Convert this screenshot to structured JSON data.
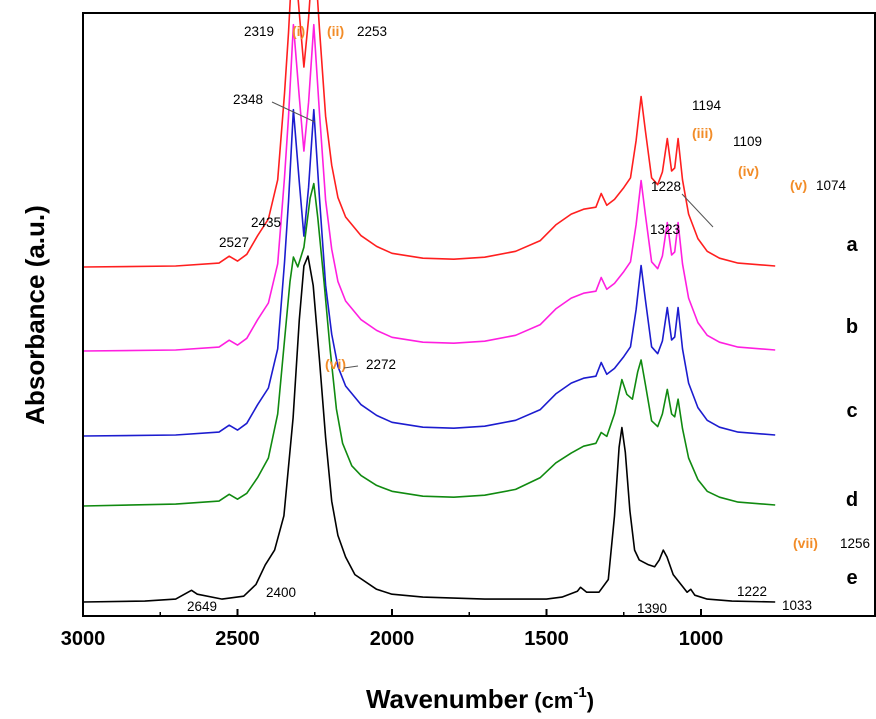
{
  "chart_data": {
    "type": "line",
    "xlabel": "Wavenumber (cm⁻¹)",
    "xlabel_main": "Wavenumber",
    "xlabel_unit": "(cm",
    "xlabel_exp": "-1",
    "xlabel_close": ")",
    "ylabel": "Absorbance (a.u.)",
    "x_axis_reversed": true,
    "xlim": [
      3000,
      760
    ],
    "xticks": [
      3000,
      2500,
      2000,
      1500,
      1000
    ],
    "grid": false,
    "series": [
      {
        "name": "a",
        "color": "#ff1f1f",
        "baseline": 0,
        "points": [
          [
            3000,
            0.01
          ],
          [
            2700,
            0.02
          ],
          [
            2560,
            0.05
          ],
          [
            2527,
            0.12
          ],
          [
            2500,
            0.07
          ],
          [
            2470,
            0.14
          ],
          [
            2435,
            0.33
          ],
          [
            2400,
            0.5
          ],
          [
            2370,
            0.9
          ],
          [
            2348,
            1.78
          ],
          [
            2335,
            2.4
          ],
          [
            2319,
            3.34
          ],
          [
            2300,
            2.6
          ],
          [
            2285,
            2.05
          ],
          [
            2270,
            2.55
          ],
          [
            2253,
            3.34
          ],
          [
            2235,
            2.45
          ],
          [
            2215,
            1.55
          ],
          [
            2195,
            1.05
          ],
          [
            2175,
            0.72
          ],
          [
            2150,
            0.52
          ],
          [
            2100,
            0.33
          ],
          [
            2050,
            0.22
          ],
          [
            2000,
            0.15
          ],
          [
            1900,
            0.1
          ],
          [
            1800,
            0.09
          ],
          [
            1700,
            0.11
          ],
          [
            1600,
            0.17
          ],
          [
            1520,
            0.28
          ],
          [
            1470,
            0.44
          ],
          [
            1420,
            0.55
          ],
          [
            1380,
            0.6
          ],
          [
            1340,
            0.62
          ],
          [
            1323,
            0.76
          ],
          [
            1305,
            0.64
          ],
          [
            1280,
            0.7
          ],
          [
            1250,
            0.82
          ],
          [
            1228,
            0.92
          ],
          [
            1210,
            1.3
          ],
          [
            1194,
            1.75
          ],
          [
            1180,
            1.4
          ],
          [
            1160,
            0.92
          ],
          [
            1140,
            0.85
          ],
          [
            1125,
            0.98
          ],
          [
            1109,
            1.32
          ],
          [
            1095,
            0.99
          ],
          [
            1085,
            1.02
          ],
          [
            1074,
            1.32
          ],
          [
            1060,
            0.9
          ],
          [
            1040,
            0.55
          ],
          [
            1010,
            0.3
          ],
          [
            980,
            0.17
          ],
          [
            940,
            0.1
          ],
          [
            880,
            0.05
          ],
          [
            760,
            0.02
          ]
        ]
      },
      {
        "name": "b",
        "color": "#ff1fe0",
        "baseline": 0,
        "points": [
          [
            3000,
            0.01
          ],
          [
            2700,
            0.02
          ],
          [
            2560,
            0.05
          ],
          [
            2527,
            0.12
          ],
          [
            2500,
            0.07
          ],
          [
            2470,
            0.14
          ],
          [
            2435,
            0.33
          ],
          [
            2400,
            0.5
          ],
          [
            2370,
            0.9
          ],
          [
            2348,
            1.78
          ],
          [
            2335,
            2.4
          ],
          [
            2319,
            3.34
          ],
          [
            2300,
            2.6
          ],
          [
            2285,
            2.05
          ],
          [
            2270,
            2.55
          ],
          [
            2253,
            3.34
          ],
          [
            2235,
            2.45
          ],
          [
            2215,
            1.55
          ],
          [
            2195,
            1.05
          ],
          [
            2175,
            0.72
          ],
          [
            2150,
            0.52
          ],
          [
            2100,
            0.33
          ],
          [
            2050,
            0.22
          ],
          [
            2000,
            0.15
          ],
          [
            1900,
            0.1
          ],
          [
            1800,
            0.09
          ],
          [
            1700,
            0.11
          ],
          [
            1600,
            0.17
          ],
          [
            1520,
            0.28
          ],
          [
            1470,
            0.44
          ],
          [
            1420,
            0.55
          ],
          [
            1380,
            0.6
          ],
          [
            1340,
            0.62
          ],
          [
            1323,
            0.76
          ],
          [
            1305,
            0.64
          ],
          [
            1280,
            0.7
          ],
          [
            1250,
            0.82
          ],
          [
            1228,
            0.92
          ],
          [
            1210,
            1.3
          ],
          [
            1194,
            1.75
          ],
          [
            1180,
            1.4
          ],
          [
            1160,
            0.92
          ],
          [
            1140,
            0.85
          ],
          [
            1125,
            0.98
          ],
          [
            1109,
            1.32
          ],
          [
            1095,
            0.99
          ],
          [
            1085,
            1.02
          ],
          [
            1074,
            1.32
          ],
          [
            1060,
            0.9
          ],
          [
            1040,
            0.55
          ],
          [
            1010,
            0.3
          ],
          [
            980,
            0.17
          ],
          [
            940,
            0.1
          ],
          [
            880,
            0.05
          ],
          [
            760,
            0.02
          ]
        ]
      },
      {
        "name": "c",
        "color": "#1c1ccf",
        "baseline": 0,
        "points": [
          [
            3000,
            0.01
          ],
          [
            2700,
            0.02
          ],
          [
            2560,
            0.05
          ],
          [
            2527,
            0.12
          ],
          [
            2500,
            0.07
          ],
          [
            2470,
            0.14
          ],
          [
            2435,
            0.33
          ],
          [
            2400,
            0.5
          ],
          [
            2370,
            0.9
          ],
          [
            2348,
            1.78
          ],
          [
            2335,
            2.4
          ],
          [
            2319,
            3.34
          ],
          [
            2300,
            2.6
          ],
          [
            2285,
            2.05
          ],
          [
            2270,
            2.55
          ],
          [
            2253,
            3.34
          ],
          [
            2235,
            2.45
          ],
          [
            2215,
            1.55
          ],
          [
            2195,
            1.05
          ],
          [
            2175,
            0.72
          ],
          [
            2150,
            0.52
          ],
          [
            2100,
            0.33
          ],
          [
            2050,
            0.22
          ],
          [
            2000,
            0.15
          ],
          [
            1900,
            0.1
          ],
          [
            1800,
            0.09
          ],
          [
            1700,
            0.11
          ],
          [
            1600,
            0.17
          ],
          [
            1520,
            0.28
          ],
          [
            1470,
            0.44
          ],
          [
            1420,
            0.55
          ],
          [
            1380,
            0.6
          ],
          [
            1340,
            0.62
          ],
          [
            1323,
            0.76
          ],
          [
            1305,
            0.64
          ],
          [
            1280,
            0.7
          ],
          [
            1250,
            0.82
          ],
          [
            1228,
            0.92
          ],
          [
            1210,
            1.3
          ],
          [
            1194,
            1.75
          ],
          [
            1180,
            1.4
          ],
          [
            1160,
            0.92
          ],
          [
            1140,
            0.85
          ],
          [
            1125,
            0.98
          ],
          [
            1109,
            1.32
          ],
          [
            1095,
            0.99
          ],
          [
            1085,
            1.02
          ],
          [
            1074,
            1.32
          ],
          [
            1060,
            0.9
          ],
          [
            1040,
            0.55
          ],
          [
            1010,
            0.3
          ],
          [
            980,
            0.17
          ],
          [
            940,
            0.1
          ],
          [
            880,
            0.05
          ],
          [
            760,
            0.02
          ]
        ]
      },
      {
        "name": "d",
        "color": "#108a10",
        "baseline": 0,
        "points": [
          [
            3000,
            0.01
          ],
          [
            2700,
            0.03
          ],
          [
            2560,
            0.06
          ],
          [
            2527,
            0.13
          ],
          [
            2500,
            0.08
          ],
          [
            2470,
            0.14
          ],
          [
            2435,
            0.3
          ],
          [
            2400,
            0.5
          ],
          [
            2370,
            0.95
          ],
          [
            2348,
            1.7
          ],
          [
            2330,
            2.3
          ],
          [
            2319,
            2.55
          ],
          [
            2305,
            2.45
          ],
          [
            2285,
            2.65
          ],
          [
            2265,
            3.15
          ],
          [
            2253,
            3.3
          ],
          [
            2240,
            2.95
          ],
          [
            2220,
            2.3
          ],
          [
            2200,
            1.6
          ],
          [
            2180,
            1.0
          ],
          [
            2160,
            0.65
          ],
          [
            2130,
            0.42
          ],
          [
            2100,
            0.32
          ],
          [
            2050,
            0.22
          ],
          [
            2000,
            0.16
          ],
          [
            1900,
            0.11
          ],
          [
            1800,
            0.1
          ],
          [
            1700,
            0.12
          ],
          [
            1600,
            0.18
          ],
          [
            1520,
            0.3
          ],
          [
            1470,
            0.45
          ],
          [
            1420,
            0.55
          ],
          [
            1380,
            0.62
          ],
          [
            1340,
            0.65
          ],
          [
            1323,
            0.76
          ],
          [
            1305,
            0.72
          ],
          [
            1280,
            0.95
          ],
          [
            1256,
            1.3
          ],
          [
            1240,
            1.15
          ],
          [
            1222,
            1.1
          ],
          [
            1205,
            1.38
          ],
          [
            1194,
            1.5
          ],
          [
            1180,
            1.25
          ],
          [
            1160,
            0.88
          ],
          [
            1140,
            0.82
          ],
          [
            1125,
            0.95
          ],
          [
            1109,
            1.2
          ],
          [
            1095,
            0.95
          ],
          [
            1085,
            0.92
          ],
          [
            1074,
            1.1
          ],
          [
            1060,
            0.8
          ],
          [
            1040,
            0.5
          ],
          [
            1010,
            0.28
          ],
          [
            980,
            0.16
          ],
          [
            940,
            0.1
          ],
          [
            880,
            0.05
          ],
          [
            760,
            0.02
          ]
        ]
      },
      {
        "name": "e",
        "color": "#000000",
        "baseline": 0,
        "points": [
          [
            3000,
            0.02
          ],
          [
            2800,
            0.03
          ],
          [
            2700,
            0.05
          ],
          [
            2660,
            0.12
          ],
          [
            2649,
            0.14
          ],
          [
            2630,
            0.1
          ],
          [
            2550,
            0.05
          ],
          [
            2480,
            0.08
          ],
          [
            2440,
            0.2
          ],
          [
            2410,
            0.4
          ],
          [
            2400,
            0.45
          ],
          [
            2380,
            0.55
          ],
          [
            2350,
            0.9
          ],
          [
            2320,
            1.9
          ],
          [
            2300,
            2.9
          ],
          [
            2285,
            3.45
          ],
          [
            2272,
            3.55
          ],
          [
            2255,
            3.25
          ],
          [
            2235,
            2.5
          ],
          [
            2215,
            1.7
          ],
          [
            2195,
            1.05
          ],
          [
            2175,
            0.7
          ],
          [
            2150,
            0.48
          ],
          [
            2120,
            0.3
          ],
          [
            2050,
            0.15
          ],
          [
            2000,
            0.1
          ],
          [
            1900,
            0.07
          ],
          [
            1700,
            0.05
          ],
          [
            1500,
            0.05
          ],
          [
            1450,
            0.07
          ],
          [
            1400,
            0.13
          ],
          [
            1390,
            0.17
          ],
          [
            1370,
            0.12
          ],
          [
            1330,
            0.12
          ],
          [
            1300,
            0.25
          ],
          [
            1280,
            0.9
          ],
          [
            1265,
            1.6
          ],
          [
            1256,
            1.8
          ],
          [
            1245,
            1.55
          ],
          [
            1230,
            0.95
          ],
          [
            1215,
            0.55
          ],
          [
            1200,
            0.45
          ],
          [
            1170,
            0.4
          ],
          [
            1150,
            0.38
          ],
          [
            1135,
            0.45
          ],
          [
            1122,
            0.55
          ],
          [
            1110,
            0.48
          ],
          [
            1090,
            0.3
          ],
          [
            1060,
            0.18
          ],
          [
            1045,
            0.12
          ],
          [
            1033,
            0.15
          ],
          [
            1020,
            0.09
          ],
          [
            980,
            0.05
          ],
          [
            900,
            0.03
          ],
          [
            760,
            0.02
          ]
        ]
      }
    ],
    "annotations": {
      "n2319": "2319",
      "r_i": "(i)",
      "r_ii": "(ii)",
      "n2253": "2253",
      "n2348": "2348",
      "n2435": "2435",
      "n2527": "2527",
      "n1194": "1194",
      "r_iii": "(iii)",
      "n1109": "1109",
      "r_iv": "(iv)",
      "r_v": "(v)",
      "n1074": "1074",
      "n1228": "1228",
      "n1323": "1323",
      "r_vi": "(vi)",
      "n2272": "2272",
      "r_vii": "(vii)",
      "n1256": "1256",
      "n1222": "1222",
      "n2649": "2649",
      "n2400": "2400",
      "n1390": "1390",
      "n1033": "1033"
    },
    "annotation_color": "#f28c28",
    "leader_color": "#555555"
  }
}
